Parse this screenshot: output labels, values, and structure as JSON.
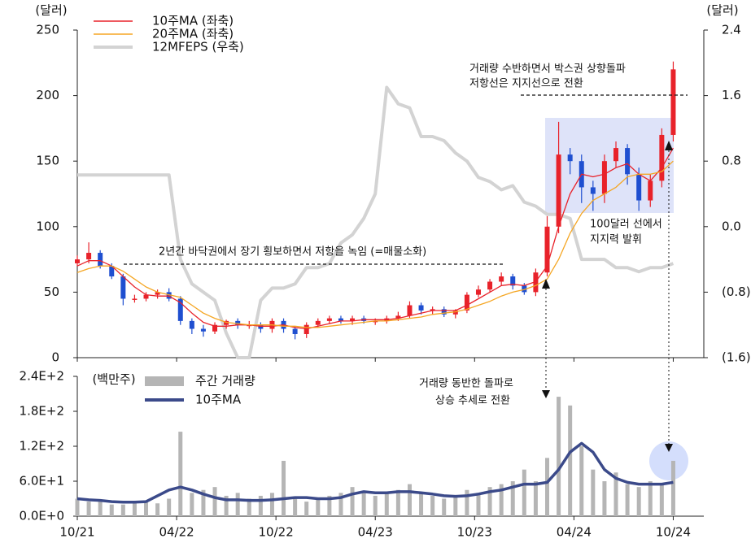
{
  "chart_data": [
    {
      "type": "candlestick",
      "y_label": "(달러)",
      "y2_label": "(달러)",
      "x": [
        0,
        3,
        6,
        9,
        12,
        15,
        18,
        21,
        24,
        27,
        30,
        33,
        36,
        39,
        42,
        45,
        48,
        51,
        54,
        57,
        60,
        63,
        66,
        69,
        72,
        75,
        78,
        81,
        84,
        87,
        90,
        93,
        96,
        99,
        102,
        105,
        108,
        111,
        114,
        117,
        120,
        123,
        126,
        129,
        132,
        135,
        138,
        141,
        144,
        147,
        150,
        153,
        156
      ],
      "xlim": [
        0,
        164
      ],
      "ylim": [
        0,
        250
      ],
      "yticks": [
        0,
        50,
        100,
        150,
        200,
        250
      ],
      "y2lim": [
        -1.6,
        2.4
      ],
      "y2ticks": [
        {
          "value": -1.6,
          "label": "(1.6)"
        },
        {
          "value": -0.8,
          "label": "(0.8)"
        },
        {
          "value": 0,
          "label": "0.0"
        },
        0.8,
        1.6,
        2.4
      ],
      "candles": {
        "up_color": "#e8222a",
        "down_color": "#1f4fd0",
        "open": [
          72,
          75,
          80,
          70,
          62,
          45,
          45,
          48,
          50,
          45,
          28,
          22,
          20,
          25,
          28,
          25,
          25,
          22,
          28,
          22,
          18,
          25,
          28,
          30,
          28,
          30,
          28,
          28,
          30,
          32,
          40,
          36,
          37,
          33,
          36,
          48,
          52,
          58,
          62,
          55,
          50,
          65,
          100,
          155,
          150,
          130,
          125,
          150,
          160,
          140,
          120,
          135,
          170
        ],
        "high": [
          78,
          88,
          82,
          72,
          64,
          48,
          50,
          52,
          53,
          47,
          30,
          25,
          27,
          29,
          30,
          28,
          27,
          30,
          30,
          24,
          27,
          30,
          32,
          32,
          32,
          32,
          30,
          32,
          35,
          43,
          42,
          39,
          39,
          37,
          50,
          55,
          60,
          65,
          64,
          57,
          68,
          108,
          180,
          160,
          155,
          135,
          155,
          165,
          163,
          145,
          140,
          175,
          226
        ],
        "low": [
          70,
          72,
          68,
          60,
          40,
          42,
          43,
          45,
          43,
          25,
          18,
          16,
          18,
          22,
          22,
          22,
          19,
          19,
          19,
          14,
          15,
          23,
          26,
          26,
          25,
          26,
          25,
          26,
          28,
          30,
          33,
          33,
          31,
          30,
          34,
          46,
          50,
          55,
          52,
          48,
          47,
          62,
          95,
          140,
          118,
          112,
          118,
          145,
          132,
          112,
          115,
          130,
          165
        ],
        "close": [
          75,
          80,
          70,
          62,
          45,
          45,
          48,
          50,
          45,
          28,
          22,
          20,
          25,
          28,
          25,
          25,
          22,
          28,
          22,
          18,
          25,
          28,
          30,
          28,
          30,
          28,
          28,
          30,
          32,
          40,
          36,
          37,
          33,
          36,
          48,
          52,
          58,
          62,
          55,
          50,
          65,
          100,
          155,
          150,
          130,
          125,
          150,
          160,
          140,
          120,
          135,
          170,
          220
        ]
      },
      "series": [
        {
          "name": "10주MA (좌축)",
          "color": "#e8222a",
          "values": [
            70,
            74,
            74,
            70,
            62,
            54,
            48,
            47,
            47,
            42,
            34,
            27,
            24,
            24,
            25,
            25,
            24,
            24,
            25,
            23,
            22,
            24,
            26,
            28,
            28,
            29,
            29,
            29,
            30,
            32,
            34,
            36,
            36,
            36,
            40,
            45,
            50,
            55,
            56,
            55,
            58,
            70,
            100,
            125,
            140,
            138,
            140,
            145,
            148,
            140,
            135,
            145,
            160
          ]
        },
        {
          "name": "20주MA (좌축)",
          "color": "#f5a623",
          "values": [
            65,
            68,
            70,
            70,
            66,
            60,
            54,
            50,
            48,
            46,
            40,
            34,
            30,
            27,
            26,
            25,
            25,
            25,
            24,
            24,
            23,
            23,
            24,
            25,
            26,
            27,
            28,
            28,
            29,
            30,
            31,
            33,
            34,
            35,
            37,
            40,
            43,
            47,
            50,
            52,
            55,
            60,
            75,
            95,
            110,
            120,
            125,
            130,
            138,
            140,
            140,
            142,
            150
          ]
        },
        {
          "name": "12MFEPS (우축)",
          "color": "#d3d3d3",
          "axis": "y2",
          "values": [
            0.63,
            0.63,
            0.63,
            0.63,
            0.63,
            0.63,
            0.63,
            0.63,
            0.63,
            -0.4,
            -0.7,
            -0.8,
            -0.9,
            -1.3,
            -1.6,
            -1.6,
            -0.9,
            -0.75,
            -0.75,
            -0.7,
            -0.5,
            -0.5,
            -0.45,
            -0.2,
            -0.1,
            0.1,
            0.4,
            1.7,
            1.5,
            1.45,
            1.1,
            1.1,
            1.05,
            0.9,
            0.8,
            0.6,
            0.55,
            0.45,
            0.5,
            0.3,
            0.25,
            0.15,
            0.15,
            0.1,
            -0.4,
            -0.4,
            -0.4,
            -0.5,
            -0.5,
            -0.55,
            -0.5,
            -0.5,
            -0.45
          ]
        }
      ],
      "annotations": [
        "거래량 수반하면서 박스권 상향돌파",
        "저항선은 지지선으로 전환",
        "2년간 바닥권에서 장기 횡보하면서 저항을 녹임 (=매물소화)",
        "100달러 선에서",
        "지지력 발휘"
      ]
    },
    {
      "type": "bar",
      "y_label": "(백만주)",
      "x": [
        0,
        3,
        6,
        9,
        12,
        15,
        18,
        21,
        24,
        27,
        30,
        33,
        36,
        39,
        42,
        45,
        48,
        51,
        54,
        57,
        60,
        63,
        66,
        69,
        72,
        75,
        78,
        81,
        84,
        87,
        90,
        93,
        96,
        99,
        102,
        105,
        108,
        111,
        114,
        117,
        120,
        123,
        126,
        129,
        132,
        135,
        138,
        141,
        144,
        147,
        150,
        153,
        156
      ],
      "xlim": [
        0,
        164
      ],
      "xticks": [
        {
          "value": 0,
          "label": "10/21"
        },
        {
          "value": 26,
          "label": "04/22"
        },
        {
          "value": 52,
          "label": "10/22"
        },
        {
          "value": 78,
          "label": "04/23"
        },
        {
          "value": 104,
          "label": "10/23"
        },
        {
          "value": 130,
          "label": "04/24"
        },
        {
          "value": 156,
          "label": "10/24"
        }
      ],
      "ylim": [
        0,
        240
      ],
      "yticks": [
        {
          "value": 0,
          "label": "0.0E+0"
        },
        {
          "value": 60,
          "label": "6.0E+1"
        },
        {
          "value": 120,
          "label": "1.2E+2"
        },
        {
          "value": 180,
          "label": "1.8E+2"
        },
        {
          "value": 240,
          "label": "2.4E+2"
        }
      ],
      "series": [
        {
          "name": "주간 거래량",
          "color": "#b5b5b5",
          "values": [
            30,
            25,
            25,
            20,
            20,
            25,
            25,
            22,
            30,
            145,
            40,
            45,
            50,
            35,
            40,
            30,
            35,
            40,
            95,
            30,
            25,
            30,
            35,
            40,
            50,
            40,
            35,
            40,
            45,
            55,
            40,
            35,
            30,
            35,
            45,
            40,
            50,
            55,
            60,
            80,
            60,
            100,
            205,
            190,
            120,
            80,
            60,
            75,
            55,
            50,
            60,
            55,
            95
          ]
        },
        {
          "name": "10주MA",
          "color": "#3b4a8a",
          "values": [
            30,
            28,
            27,
            25,
            24,
            24,
            25,
            35,
            45,
            50,
            45,
            38,
            32,
            28,
            28,
            27,
            27,
            28,
            30,
            32,
            32,
            30,
            30,
            32,
            38,
            42,
            40,
            40,
            42,
            42,
            40,
            38,
            35,
            34,
            35,
            38,
            42,
            45,
            50,
            55,
            55,
            58,
            80,
            110,
            125,
            110,
            80,
            65,
            58,
            55,
            55,
            55,
            58
          ]
        }
      ],
      "annotations": [
        "거래량 동반한 돌파로",
        "상승 추세로 전환"
      ]
    }
  ]
}
